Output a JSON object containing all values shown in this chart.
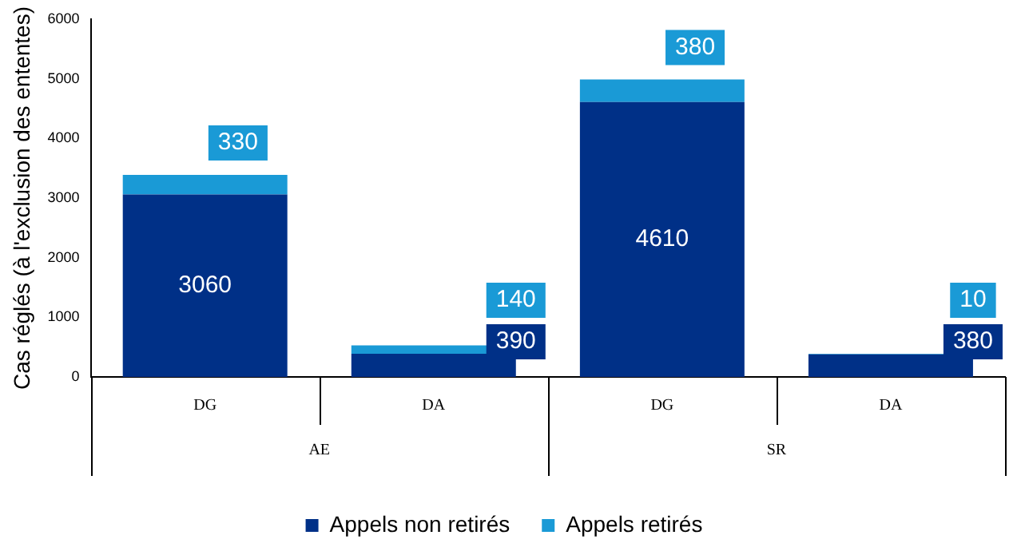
{
  "chart_data": {
    "type": "bar",
    "stacked": true,
    "ylabel": "Cas réglés (à l'exclusion des ententes)",
    "categories": [
      "DG",
      "DA",
      "DG",
      "DA"
    ],
    "series": [
      {
        "name": "Appels non retirés",
        "color": "#003087",
        "values": [
          3060,
          390,
          4610,
          380
        ]
      },
      {
        "name": "Appels retirés",
        "color": "#1a9ad6",
        "values": [
          330,
          140,
          380,
          10
        ]
      }
    ],
    "ylim": [
      0,
      6000
    ],
    "yticks": [
      0,
      1000,
      2000,
      3000,
      4000,
      5000,
      6000
    ],
    "grid": false,
    "legend": "bottom",
    "data_labels": true,
    "annotations": [
      "AE",
      "SR"
    ]
  }
}
